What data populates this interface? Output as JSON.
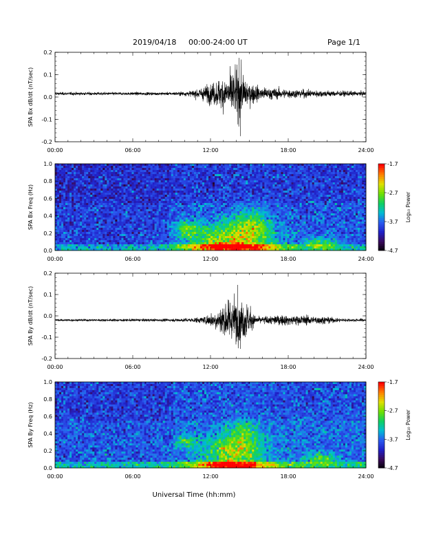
{
  "header": {
    "date": "2019/04/18",
    "range": "00:00-24:00 UT",
    "page": "Page 1/1"
  },
  "xlabel": "Universal Time (hh:mm)",
  "colors": {
    "trace": "#000000",
    "spectrogram_scale": [
      "#000000",
      "#3a0a5a",
      "#2020c8",
      "#2a5af0",
      "#00bcd4",
      "#10d060",
      "#70e000",
      "#e0e000",
      "#ff8000",
      "#ff0000"
    ]
  },
  "chart_data": [
    {
      "type": "line",
      "ylabel": "SPA Bx dB/dt (nT/sec)",
      "xlim": [
        0,
        24
      ],
      "ylim": [
        -0.2,
        0.2
      ],
      "x_tick_labels": [
        "00:00",
        "06:00",
        "12:00",
        "18:00",
        "24:00"
      ],
      "y_tick_labels": [
        "0.2",
        "0.1",
        "0.0",
        "-0.1",
        "-0.2"
      ],
      "baseline": 0.015,
      "amplitude_envelope": [
        {
          "x": 0,
          "a": 0.008
        },
        {
          "x": 9,
          "a": 0.008
        },
        {
          "x": 10.5,
          "a": 0.015
        },
        {
          "x": 11.5,
          "a": 0.04
        },
        {
          "x": 12.5,
          "a": 0.07
        },
        {
          "x": 13.5,
          "a": 0.11
        },
        {
          "x": 14.2,
          "a": 0.14
        },
        {
          "x": 15,
          "a": 0.06
        },
        {
          "x": 16,
          "a": 0.035
        },
        {
          "x": 18,
          "a": 0.025
        },
        {
          "x": 20,
          "a": 0.02
        },
        {
          "x": 22,
          "a": 0.015
        },
        {
          "x": 24,
          "a": 0.012
        }
      ],
      "extremes": [
        {
          "x": 14.2,
          "y": 0.175
        },
        {
          "x": 14.3,
          "y": -0.175
        }
      ]
    },
    {
      "type": "heatmap",
      "ylabel": "SPA Bx Freq (Hz)",
      "xlim": [
        0,
        24
      ],
      "ylim": [
        0,
        1.0
      ],
      "x_tick_labels": [
        "00:00",
        "06:00",
        "12:00",
        "18:00",
        "24:00"
      ],
      "y_tick_labels": [
        "1.0",
        "0.8",
        "0.6",
        "0.4",
        "0.2",
        "0.0"
      ],
      "colorbar": {
        "label": "Log₁₀ Power",
        "range": [
          -4.7,
          -1.7
        ],
        "tick_labels": [
          "-1.7",
          "-2.7",
          "-3.7",
          "-4.7"
        ]
      },
      "background_level": -3.75,
      "bursts": [
        {
          "x": 13.5,
          "f": 0.12,
          "sx": 2.2,
          "sf": 0.14,
          "amp": 1.2
        },
        {
          "x": 15.2,
          "f": 0.3,
          "sx": 1.0,
          "sf": 0.12,
          "amp": 0.8
        },
        {
          "x": 10.2,
          "f": 0.25,
          "sx": 0.6,
          "sf": 0.06,
          "amp": 0.8
        },
        {
          "x": 20.5,
          "f": 0.08,
          "sx": 0.9,
          "sf": 0.05,
          "amp": 0.8
        },
        {
          "x": 13.8,
          "f": 0.04,
          "sx": 2.5,
          "sf": 0.03,
          "amp": 1.4
        }
      ]
    },
    {
      "type": "line",
      "ylabel": "SPA By dB/dt (nT/sec)",
      "xlim": [
        0,
        24
      ],
      "ylim": [
        -0.2,
        0.2
      ],
      "x_tick_labels": [
        "00:00",
        "06:00",
        "12:00",
        "18:00",
        "24:00"
      ],
      "y_tick_labels": [
        "0.2",
        "0.1",
        "0.0",
        "-0.1",
        "-0.2"
      ],
      "baseline": -0.02,
      "amplitude_envelope": [
        {
          "x": 0,
          "a": 0.006
        },
        {
          "x": 9,
          "a": 0.008
        },
        {
          "x": 10.5,
          "a": 0.012
        },
        {
          "x": 11.5,
          "a": 0.02
        },
        {
          "x": 12.5,
          "a": 0.06
        },
        {
          "x": 13.3,
          "a": 0.11
        },
        {
          "x": 14,
          "a": 0.13
        },
        {
          "x": 14.8,
          "a": 0.1
        },
        {
          "x": 15.5,
          "a": 0.02
        },
        {
          "x": 16.5,
          "a": 0.025
        },
        {
          "x": 18,
          "a": 0.03
        },
        {
          "x": 20,
          "a": 0.025
        },
        {
          "x": 21,
          "a": 0.02
        },
        {
          "x": 22,
          "a": 0.01
        },
        {
          "x": 24,
          "a": 0.008
        }
      ],
      "extremes": [
        {
          "x": 14.1,
          "y": 0.145
        },
        {
          "x": 14.3,
          "y": -0.155
        }
      ]
    },
    {
      "type": "heatmap",
      "ylabel": "SPA By Freq (Hz)",
      "xlim": [
        0,
        24
      ],
      "ylim": [
        0,
        1.0
      ],
      "x_tick_labels": [
        "00:00",
        "06:00",
        "12:00",
        "18:00",
        "24:00"
      ],
      "y_tick_labels": [
        "1.0",
        "0.8",
        "0.6",
        "0.4",
        "0.2",
        "0.0"
      ],
      "colorbar": {
        "label": "Log₁₀ Power",
        "range": [
          -4.7,
          -1.7
        ],
        "tick_labels": [
          "-1.7",
          "-2.7",
          "-3.7",
          "-4.7"
        ]
      },
      "background_level": -3.65,
      "bursts": [
        {
          "x": 13.7,
          "f": 0.18,
          "sx": 1.6,
          "sf": 0.14,
          "amp": 1.1
        },
        {
          "x": 14.6,
          "f": 0.42,
          "sx": 0.8,
          "sf": 0.12,
          "amp": 0.6
        },
        {
          "x": 10.1,
          "f": 0.3,
          "sx": 0.5,
          "sf": 0.05,
          "amp": 0.7
        },
        {
          "x": 20.5,
          "f": 0.1,
          "sx": 0.9,
          "sf": 0.05,
          "amp": 0.8
        },
        {
          "x": 13.8,
          "f": 0.03,
          "sx": 2.4,
          "sf": 0.03,
          "amp": 1.5
        }
      ]
    }
  ]
}
